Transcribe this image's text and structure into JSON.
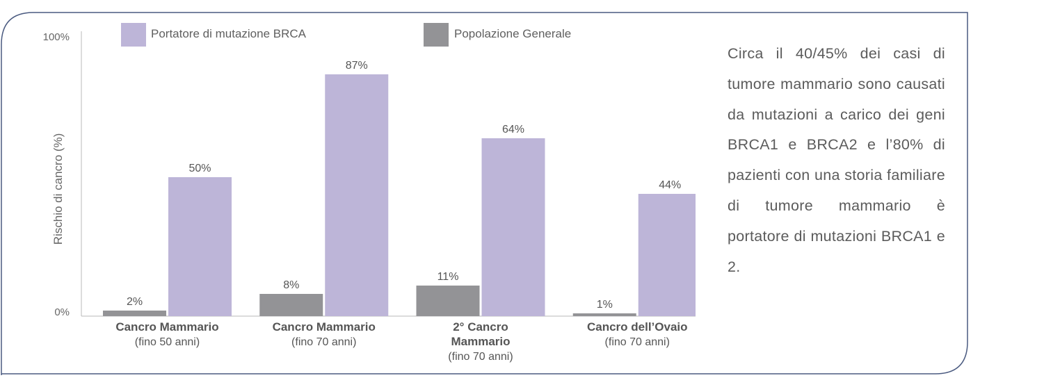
{
  "colors": {
    "brca": "#bdb5d8",
    "general": "#939396",
    "frame": "#4a5a80",
    "axis": "#b8b8b8"
  },
  "description": "Circa il 40/45% dei casi di tumore mammario sono causati da mutazioni a carico dei geni BRCA1 e BRCA2 e l’80% di pazienti con una storia familiare di tumore mammario è portatore  di mutazioni BRCA1 e 2.",
  "chart_data": {
    "type": "bar",
    "ylabel": "Rischio di cancro (%)",
    "ylim": [
      0,
      100
    ],
    "yticks": [
      "0%",
      "100%"
    ],
    "grid": false,
    "legend_position": "top",
    "categories": [
      {
        "title": [
          "Cancro Mammario"
        ],
        "sub": "(fino 50 anni)"
      },
      {
        "title": [
          "Cancro Mammario"
        ],
        "sub": "(fino 70 anni)"
      },
      {
        "title": [
          "2° Cancro",
          "Mammario"
        ],
        "sub": "(fino 70 anni)"
      },
      {
        "title": [
          "Cancro dell’Ovaio"
        ],
        "sub": "(fino 70 anni)"
      }
    ],
    "series": [
      {
        "name": "Popolazione Generale",
        "values": [
          2,
          8,
          11,
          1
        ],
        "labels": [
          "2%",
          "8%",
          "11%",
          "1%"
        ]
      },
      {
        "name": "Portatore di mutazione BRCA",
        "values": [
          50,
          87,
          64,
          44
        ],
        "labels": [
          "50%",
          "87%",
          "64%",
          "44%"
        ]
      }
    ]
  }
}
